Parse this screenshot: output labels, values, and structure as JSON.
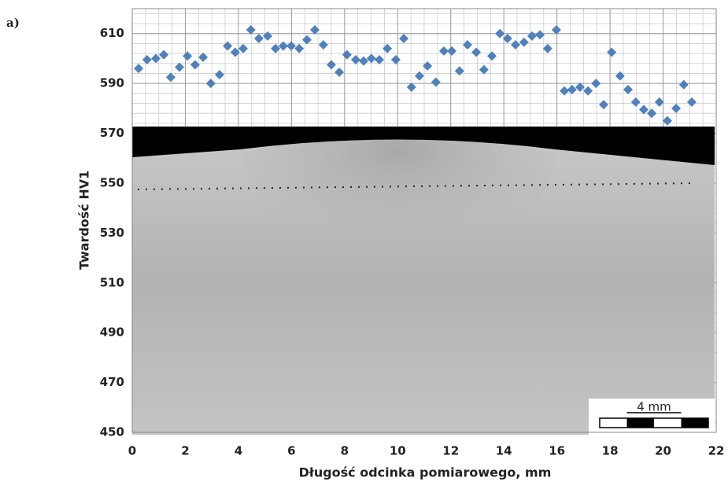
{
  "chart_data": {
    "type": "scatter",
    "label": "a)",
    "xlabel": "Długość odcinka pomiarowego, mm",
    "ylabel": "Twardość HV1",
    "scale_bar": "4 mm",
    "color": "#4f81bd",
    "grid": true,
    "xlim": [
      0,
      22
    ],
    "ylim": [
      450,
      620
    ],
    "xticks": [
      0,
      2,
      4,
      6,
      8,
      10,
      12,
      14,
      16,
      18,
      20,
      22
    ],
    "yticks": [
      450,
      470,
      490,
      510,
      530,
      550,
      570,
      590,
      610
    ],
    "x": [
      0.24,
      0.56,
      0.89,
      1.19,
      1.45,
      1.78,
      2.08,
      2.37,
      2.67,
      2.96,
      3.29,
      3.59,
      3.88,
      4.18,
      4.47,
      4.77,
      5.1,
      5.4,
      5.69,
      5.99,
      6.29,
      6.58,
      6.88,
      7.2,
      7.5,
      7.8,
      8.09,
      8.42,
      8.72,
      9.01,
      9.31,
      9.61,
      9.93,
      10.23,
      10.52,
      10.82,
      11.12,
      11.44,
      11.74,
      12.04,
      12.33,
      12.63,
      12.96,
      13.25,
      13.55,
      13.85,
      14.14,
      14.44,
      14.76,
      15.06,
      15.36,
      15.65,
      15.98,
      16.28,
      16.57,
      16.87,
      17.17,
      17.47,
      17.76,
      18.06,
      18.38,
      18.68,
      18.97,
      19.27,
      19.57,
      19.86,
      20.16,
      20.49,
      20.78,
      21.08
    ],
    "values": [
      596,
      599.5,
      600,
      601.5,
      592.5,
      596.5,
      601,
      597.5,
      600.5,
      590,
      593.5,
      605,
      602.5,
      604,
      611.5,
      608,
      609,
      604,
      605,
      605,
      604,
      607.5,
      611.5,
      605.5,
      597.5,
      594.5,
      601.5,
      599.5,
      599,
      600,
      599.5,
      604,
      599.5,
      608,
      588.5,
      593,
      597,
      590.5,
      603,
      603,
      595,
      605.5,
      602.5,
      595.5,
      601,
      610,
      608,
      605.5,
      606.5,
      609,
      609.5,
      604,
      611.5,
      587,
      587.5,
      588.5,
      587,
      590,
      581.5,
      602.5,
      593,
      587.5,
      582.5,
      579.5,
      578,
      582.5,
      575,
      580,
      589.5,
      582.5
    ]
  }
}
